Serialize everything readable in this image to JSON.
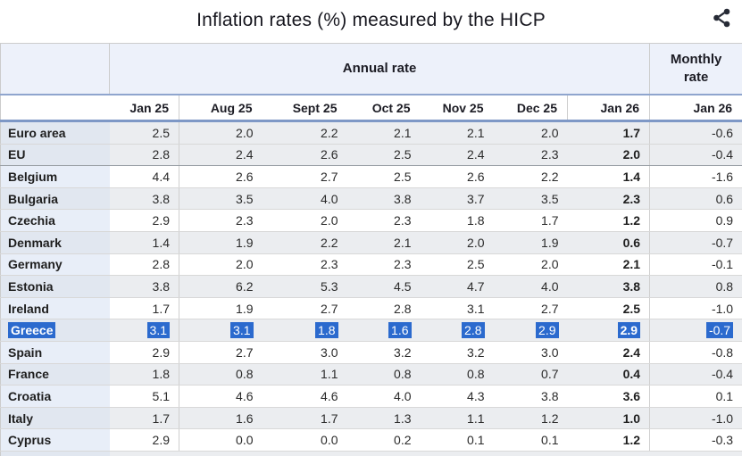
{
  "title": "Inflation rates (%) measured by the HICP",
  "toolbar": {
    "share_icon": "share-nodes"
  },
  "colors": {
    "selection_highlight": "#2b6ace",
    "group_header_bg": "#edf1fa",
    "blue_rule_top": "#8fa5ce",
    "blue_rule_bottom": "#7e98c6",
    "shaded_row": "#ebedf0",
    "country_cell_tint": "#e8eef8"
  },
  "chart_data": {
    "type": "table",
    "title": "Inflation rates (%) measured by the HICP",
    "group_headers": [
      "Annual rate",
      "Monthly rate"
    ],
    "annual_columns": [
      "Jan 25",
      "Aug 25",
      "Sept 25",
      "Oct 25",
      "Nov 25",
      "Dec 25",
      "Jan 26"
    ],
    "monthly_columns": [
      "Jan 26"
    ],
    "selected_row": "Greece",
    "rows": [
      {
        "country": "Euro area",
        "annual": [
          "2.5",
          "2.0",
          "2.2",
          "2.1",
          "2.1",
          "2.0",
          "1.7"
        ],
        "monthly": "-0.6",
        "selected": false
      },
      {
        "country": "EU",
        "annual": [
          "2.8",
          "2.4",
          "2.6",
          "2.5",
          "2.4",
          "2.3",
          "2.0"
        ],
        "monthly": "-0.4",
        "selected": false
      },
      {
        "country": "Belgium",
        "annual": [
          "4.4",
          "2.6",
          "2.7",
          "2.5",
          "2.6",
          "2.2",
          "1.4"
        ],
        "monthly": "-1.6",
        "selected": false
      },
      {
        "country": "Bulgaria",
        "annual": [
          "3.8",
          "3.5",
          "4.0",
          "3.8",
          "3.7",
          "3.5",
          "2.3"
        ],
        "monthly": "0.6",
        "selected": false
      },
      {
        "country": "Czechia",
        "annual": [
          "2.9",
          "2.3",
          "2.0",
          "2.3",
          "1.8",
          "1.7",
          "1.2"
        ],
        "monthly": "0.9",
        "selected": false
      },
      {
        "country": "Denmark",
        "annual": [
          "1.4",
          "1.9",
          "2.2",
          "2.1",
          "2.0",
          "1.9",
          "0.6"
        ],
        "monthly": "-0.7",
        "selected": false
      },
      {
        "country": "Germany",
        "annual": [
          "2.8",
          "2.0",
          "2.3",
          "2.3",
          "2.5",
          "2.0",
          "2.1"
        ],
        "monthly": "-0.1",
        "selected": false
      },
      {
        "country": "Estonia",
        "annual": [
          "3.8",
          "6.2",
          "5.3",
          "4.5",
          "4.7",
          "4.0",
          "3.8"
        ],
        "monthly": "0.8",
        "selected": false
      },
      {
        "country": "Ireland",
        "annual": [
          "1.7",
          "1.9",
          "2.7",
          "2.8",
          "3.1",
          "2.7",
          "2.5"
        ],
        "monthly": "-1.0",
        "selected": false
      },
      {
        "country": "Greece",
        "annual": [
          "3.1",
          "3.1",
          "1.8",
          "1.6",
          "2.8",
          "2.9",
          "2.9"
        ],
        "monthly": "-0.7",
        "selected": true
      },
      {
        "country": "Spain",
        "annual": [
          "2.9",
          "2.7",
          "3.0",
          "3.2",
          "3.2",
          "3.0",
          "2.4"
        ],
        "monthly": "-0.8",
        "selected": false
      },
      {
        "country": "France",
        "annual": [
          "1.8",
          "0.8",
          "1.1",
          "0.8",
          "0.8",
          "0.7",
          "0.4"
        ],
        "monthly": "-0.4",
        "selected": false
      },
      {
        "country": "Croatia",
        "annual": [
          "5.1",
          "4.6",
          "4.6",
          "4.0",
          "4.3",
          "3.8",
          "3.6"
        ],
        "monthly": "0.1",
        "selected": false
      },
      {
        "country": "Italy",
        "annual": [
          "1.7",
          "1.6",
          "1.7",
          "1.3",
          "1.1",
          "1.2",
          "1.0"
        ],
        "monthly": "-1.0",
        "selected": false
      },
      {
        "country": "Cyprus",
        "annual": [
          "2.9",
          "0.0",
          "0.0",
          "0.2",
          "0.1",
          "0.1",
          "1.2"
        ],
        "monthly": "-0.3",
        "selected": false
      }
    ]
  }
}
